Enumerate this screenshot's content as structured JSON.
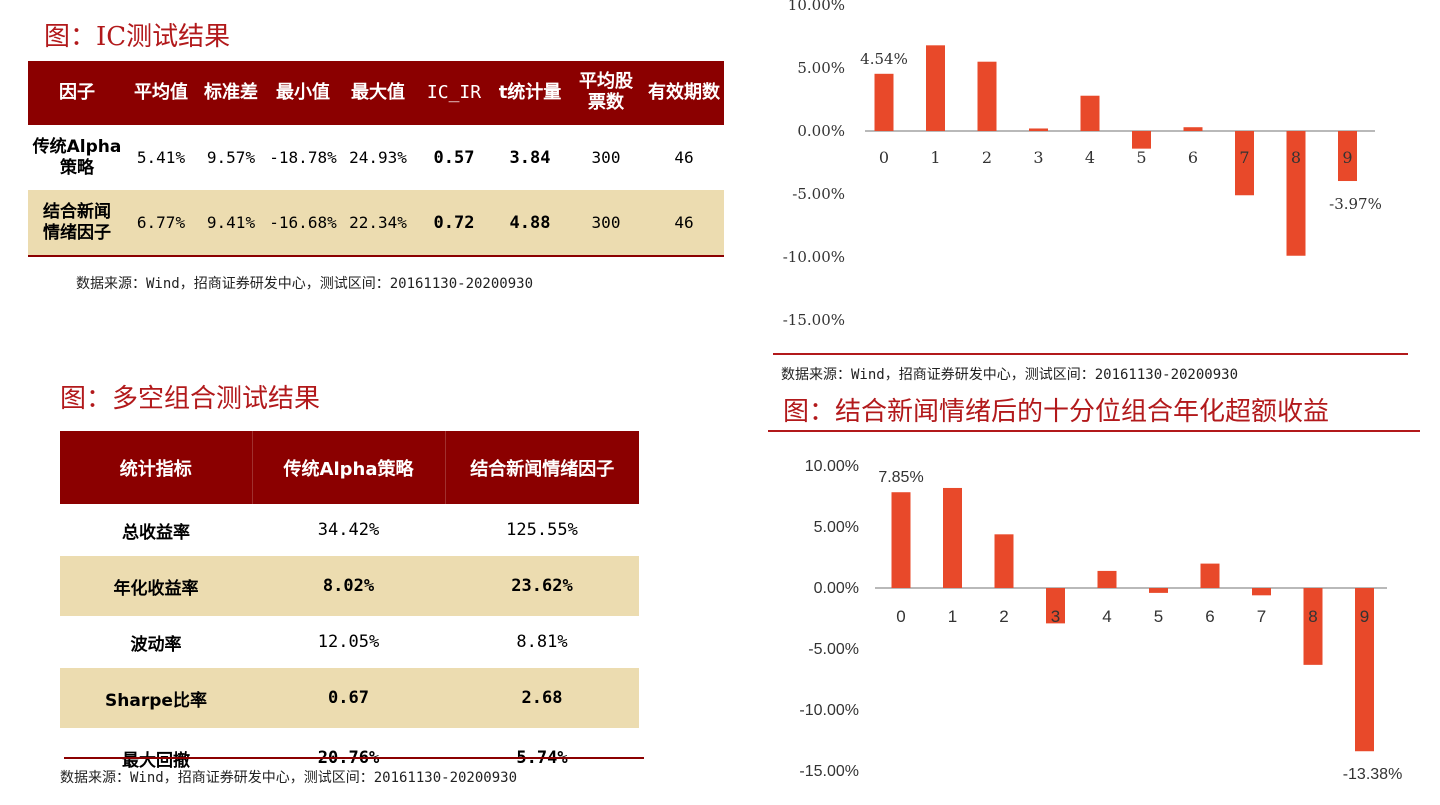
{
  "ic_section": {
    "title": "图：IC测试结果",
    "headers": [
      "因子",
      "平均值",
      "标准差",
      "最小值",
      "最大值",
      "IC_IR",
      "t统计量",
      "平均股票数",
      "有效期数"
    ],
    "header_avg_stocks": [
      "平均股",
      "票数"
    ],
    "rows": [
      {
        "factor": [
          "传统Alpha",
          "策略"
        ],
        "mean": "5.41%",
        "std": "9.57%",
        "min": "-18.78%",
        "max": "24.93%",
        "ic_ir": "0.57",
        "t_stat": "3.84",
        "avg_stocks": "300",
        "periods": "46"
      },
      {
        "factor": [
          "结合新闻",
          "情绪因子"
        ],
        "mean": "6.77%",
        "std": "9.41%",
        "min": "-16.68%",
        "max": "22.34%",
        "ic_ir": "0.72",
        "t_stat": "4.88",
        "avg_stocks": "300",
        "periods": "46"
      }
    ],
    "source": "数据来源：Wind，招商证券研发中心，测试区间：20161130-20200930"
  },
  "ls_section": {
    "title": "图：多空组合测试结果",
    "headers": [
      "统计指标",
      "传统Alpha策略",
      "结合新闻情绪因子"
    ],
    "rows": [
      {
        "label": "总收益率",
        "a": "34.42%",
        "b": "125.55%"
      },
      {
        "label": "年化收益率",
        "a": "8.02%",
        "b": "23.62%"
      },
      {
        "label": "波动率",
        "a": "12.05%",
        "b": "8.81%"
      },
      {
        "label": "Sharpe比率",
        "a": "0.67",
        "b": "2.68"
      },
      {
        "label": "最大回撤",
        "a": "20.76%",
        "b": "5.74%"
      }
    ],
    "source": "数据来源：Wind，招商证券研发中心，测试区间：20161130-20200930"
  },
  "top_chart_source": "数据来源：Wind，招商证券研发中心，测试区间：20161130-20200930",
  "bottom_chart_title": "图：结合新闻情绪后的十分位组合年化超额收益",
  "colors": {
    "accent": "#b2191b",
    "header_bg": "#8b0000",
    "alt_row": "#ecdcb0",
    "bar": "#e8492a"
  },
  "chart_data": [
    {
      "type": "bar",
      "categories": [
        "0",
        "1",
        "2",
        "3",
        "4",
        "5",
        "6",
        "7",
        "8",
        "9"
      ],
      "values": [
        4.54,
        6.8,
        5.5,
        0.2,
        2.8,
        -1.4,
        0.3,
        -5.1,
        -9.9,
        -3.97
      ],
      "value_labels": {
        "0": "4.54%",
        "9": "-3.97%"
      },
      "ytick_labels": [
        "10.00%",
        "5.00%",
        "0.00%",
        "-5.00%",
        "-10.00%",
        "-15.00%"
      ],
      "ylim": [
        -15,
        10
      ],
      "grid": false
    },
    {
      "type": "bar",
      "categories": [
        "0",
        "1",
        "2",
        "3",
        "4",
        "5",
        "6",
        "7",
        "8",
        "9"
      ],
      "values": [
        7.85,
        8.2,
        4.4,
        -2.9,
        1.4,
        -0.4,
        2.0,
        -0.6,
        -6.3,
        -13.38
      ],
      "value_labels": {
        "0": "7.85%",
        "9": "-13.38%"
      },
      "ytick_labels": [
        "10.00%",
        "5.00%",
        "0.00%",
        "-5.00%",
        "-10.00%",
        "-15.00%"
      ],
      "ylim": [
        -15,
        10
      ],
      "grid": false
    }
  ]
}
